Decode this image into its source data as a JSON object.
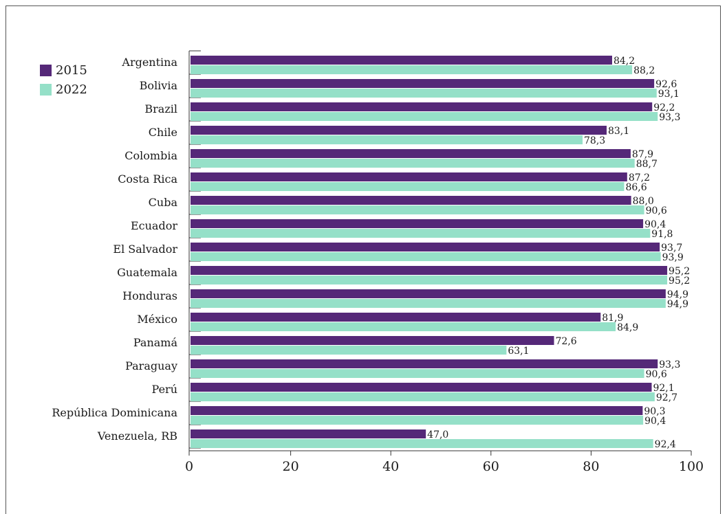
{
  "chart_data": {
    "type": "bar",
    "orientation": "horizontal",
    "categories": [
      "Argentina",
      "Bolivia",
      "Brazil",
      "Chile",
      "Colombia",
      "Costa Rica",
      "Cuba",
      "Ecuador",
      "El Salvador",
      "Guatemala",
      "Honduras",
      "México",
      "Panamá",
      "Paraguay",
      "Perú",
      "República Dominicana",
      "Venezuela, RB"
    ],
    "series": [
      {
        "name": "2015",
        "color": "#552878",
        "values": [
          84.2,
          92.6,
          92.2,
          83.1,
          87.9,
          87.2,
          88.0,
          90.4,
          93.7,
          95.2,
          94.9,
          81.9,
          72.6,
          93.3,
          92.1,
          90.3,
          47.0
        ]
      },
      {
        "name": "2022",
        "color": "#95e0c8",
        "values": [
          88.2,
          93.1,
          93.3,
          78.3,
          88.7,
          86.6,
          90.6,
          91.8,
          93.9,
          95.2,
          94.9,
          84.9,
          63.1,
          90.6,
          92.7,
          90.4,
          92.4
        ]
      }
    ],
    "value_labels": {
      "2015": [
        "84,2",
        "92,6",
        "92,2",
        "83,1",
        "87,9",
        "87,2",
        "88,0",
        "90,4",
        "93,7",
        "95,2",
        "94,9",
        "81,9",
        "72,6",
        "93,3",
        "92,1",
        "90,3",
        "47,0"
      ],
      "2022": [
        "88,2",
        "93,1",
        "93,3",
        "78,3",
        "88,7",
        "86,6",
        "90,6",
        "91,8",
        "93,9",
        "95,2",
        "94,9",
        "84,9",
        "63,1",
        "90,6",
        "92,7",
        "90,4",
        "92,4"
      ]
    },
    "xlim": [
      0,
      100
    ],
    "xticks": [
      0,
      20,
      40,
      60,
      80,
      100
    ],
    "xtick_labels": [
      "0",
      "20",
      "40",
      "60",
      "80",
      "100"
    ],
    "title": "",
    "xlabel": "",
    "ylabel": "",
    "grid": false,
    "legend_position": "top-left"
  }
}
